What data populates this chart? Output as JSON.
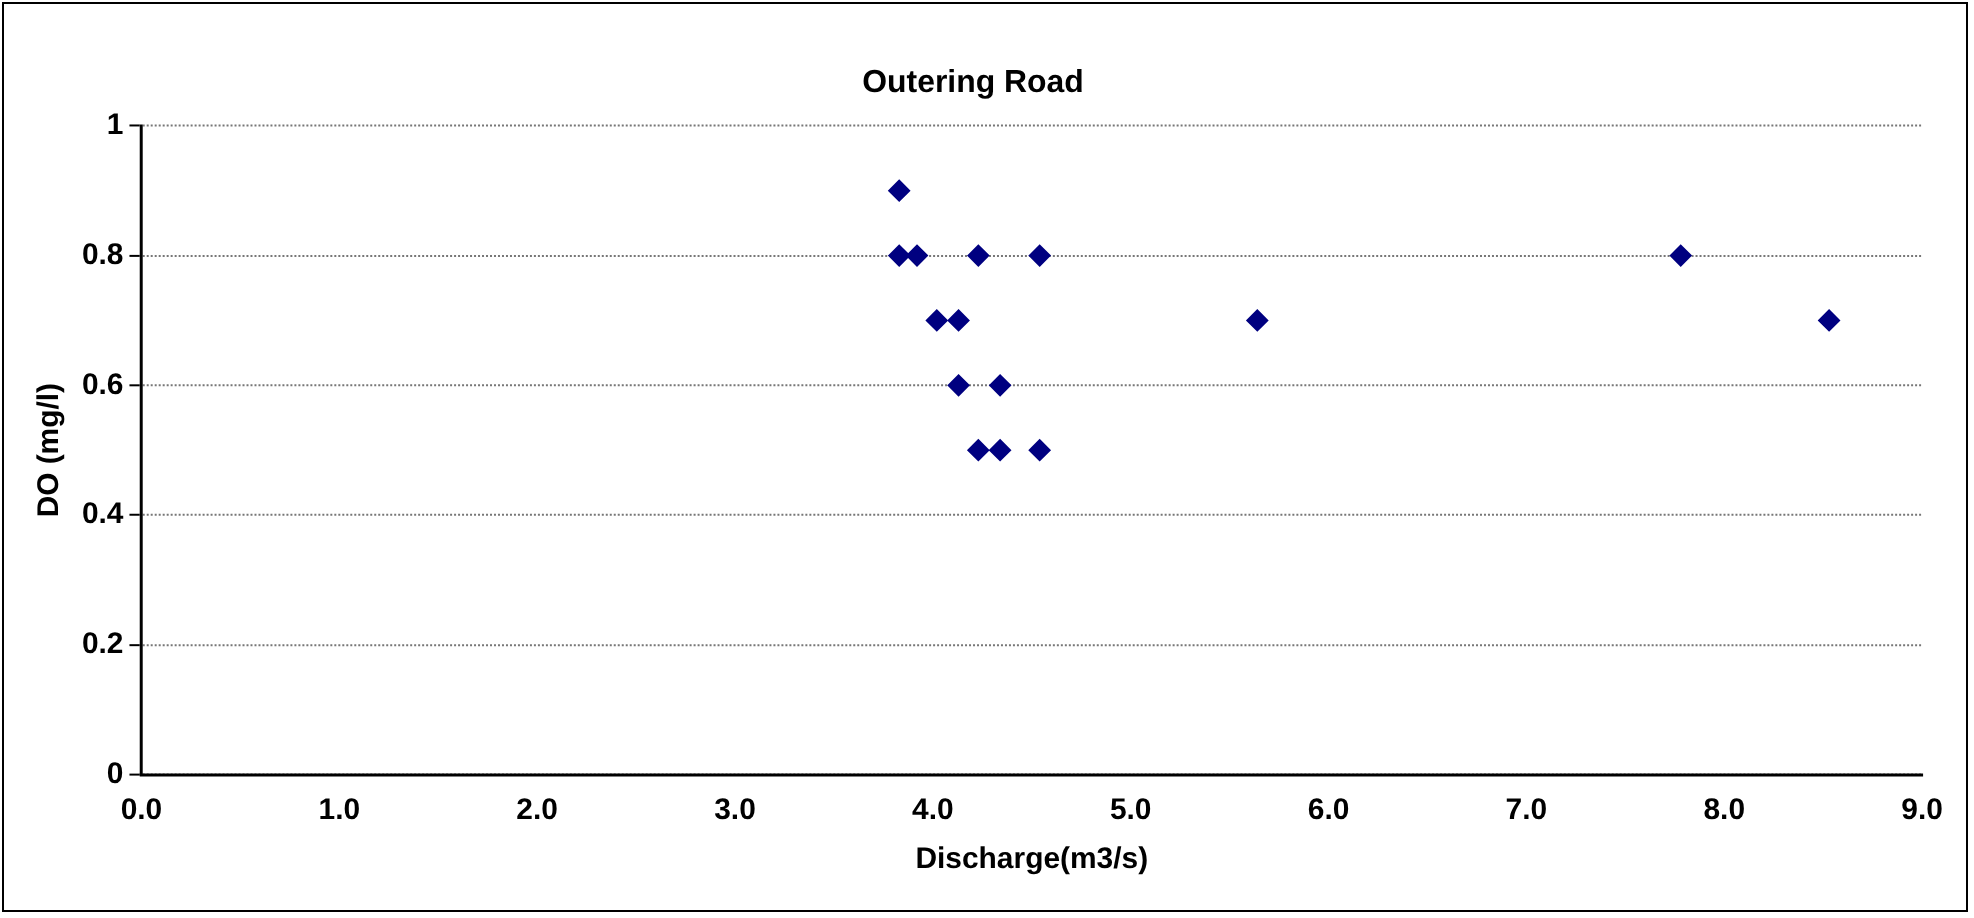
{
  "chart_data": {
    "type": "scatter",
    "title": "Outering Road",
    "xlabel": "Discharge(m3/s)",
    "ylabel": "DO (mg/l)",
    "series": [
      {
        "color": "#000080",
        "x": [
          3.83,
          3.83,
          3.92,
          4.23,
          4.54,
          4.02,
          4.13,
          4.13,
          4.34,
          4.23,
          4.34,
          4.54,
          5.64,
          7.78,
          8.53
        ],
        "values": [
          0.9,
          0.8,
          0.8,
          0.8,
          0.8,
          0.7,
          0.7,
          0.6,
          0.6,
          0.5,
          0.5,
          0.5,
          0.7,
          0.8,
          0.7
        ]
      }
    ],
    "xlim": [
      0,
      9
    ],
    "xticks": [
      {
        "value": 0,
        "label": "0.0"
      },
      {
        "value": 1,
        "label": "1.0"
      },
      {
        "value": 2,
        "label": "2.0"
      },
      {
        "value": 3,
        "label": "3.0"
      },
      {
        "value": 4,
        "label": "4.0"
      },
      {
        "value": 5,
        "label": "5.0"
      },
      {
        "value": 6,
        "label": "6.0"
      },
      {
        "value": 7,
        "label": "7.0"
      },
      {
        "value": 8,
        "label": "8.0"
      },
      {
        "value": 9,
        "label": "9.0"
      }
    ],
    "ylim": [
      0,
      1
    ],
    "yticks": [
      0,
      0.2,
      0.4,
      0.6,
      0.8,
      1
    ],
    "grid": "y",
    "legend": false,
    "marker": "diamond"
  }
}
